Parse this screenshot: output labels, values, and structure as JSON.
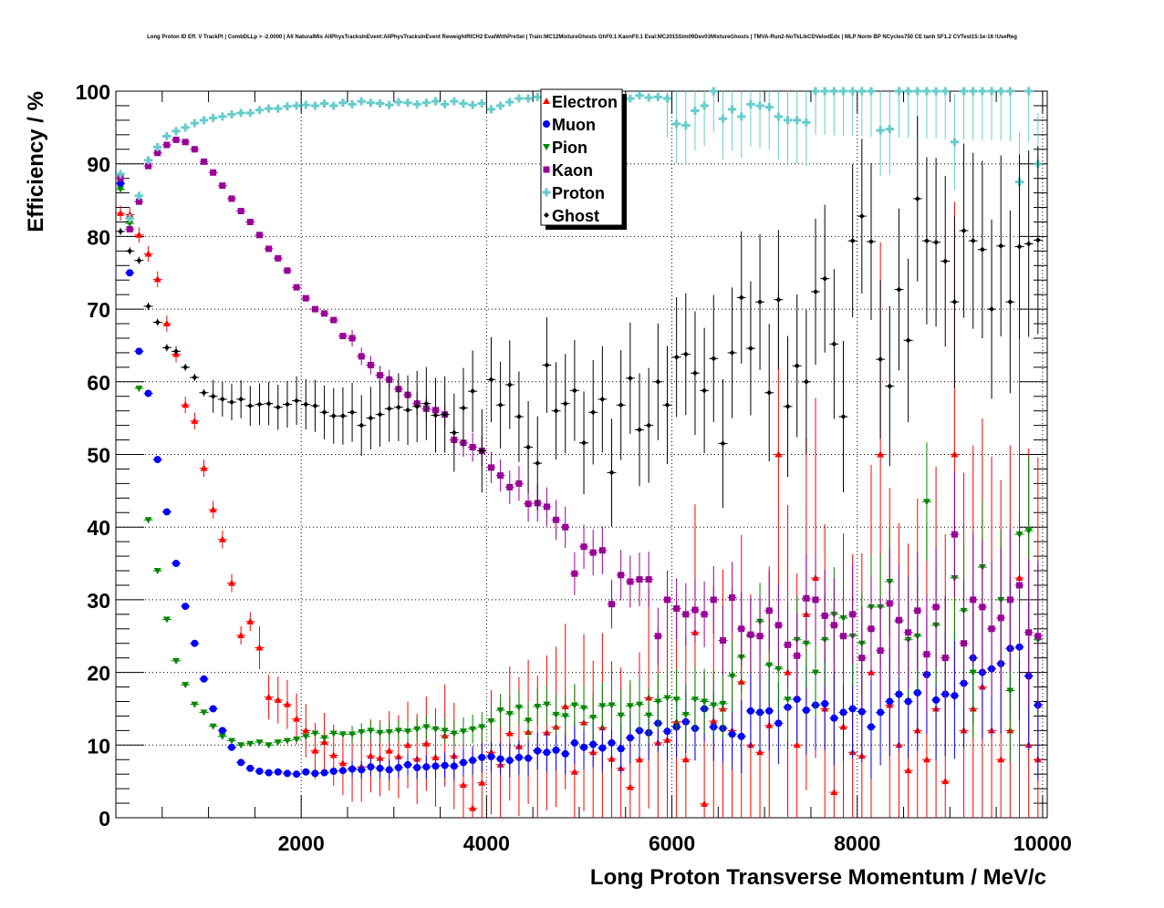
{
  "chart_data": {
    "type": "scatter",
    "title": "Long Proton ID Eff. V TrackPt | CombDLLp > -2.0000 | All NaturalMix AllPhysTracksInEvent:AllPhysTracksInEvent ReweightRICH2 EvalWithPreSel | Train:MC12MixtureGhosts GhF0.1 KaonF0.1 Eval:MC2015Sim09Dev03MixtureGhosts | TMVA-Run2-NoTkLikCDVelodEdx | MLP Norm BP NCycles750 CE tanh SF1.2 CVTest15:1e-16 !UseReg",
    "xlabel": "Long Proton Transverse Momentum / MeV/c",
    "ylabel": "Efficiency / %",
    "xlim": [
      0,
      10050
    ],
    "ylim": [
      0,
      100
    ],
    "x_ticks": [
      2000,
      4000,
      6000,
      8000,
      10000
    ],
    "x_tick_labels": [
      "2000",
      "4000",
      "6000",
      "8000",
      "10000"
    ],
    "y_ticks": [
      0,
      10,
      20,
      30,
      40,
      50,
      60,
      70,
      80,
      90,
      100
    ],
    "y_tick_labels": [
      "0",
      "10",
      "20",
      "30",
      "40",
      "50",
      "60",
      "70",
      "80",
      "90",
      "100"
    ],
    "grid": true,
    "legend_position": "top-center",
    "x_start": 50,
    "x_step": 100,
    "series": [
      {
        "name": "Electron",
        "color": "#ff0000",
        "marker": "triangle-up",
        "values": [
          83.2,
          83.0,
          80.2,
          77.6,
          74.1,
          68.0,
          63.8,
          56.8,
          54.6,
          48.1,
          42.4,
          38.3,
          32.3,
          25.1,
          27.0,
          23.4,
          16.6,
          16.2,
          15.6,
          13.6,
          12.0,
          9.2,
          10.4,
          8.6,
          7.5,
          6.8,
          7.0,
          8.5,
          8.2,
          9.2,
          8.4,
          10.0,
          8.1,
          10.2,
          8.3,
          11.3,
          8.5,
          4.5,
          1.3,
          4.8,
          9.0,
          7.3,
          11.6,
          9.8,
          11.8,
          9.3,
          11.7,
          12.5,
          15.3,
          6.3,
          13.1,
          9.0,
          12.4,
          8.1,
          6.8,
          4.2,
          8.0,
          16.5,
          10.3,
          10.7,
          13.2,
          8.0,
          25.5,
          1.9,
          13.3,
          15.0,
          12.0,
          18.7,
          10.0,
          9.0,
          12.7,
          50.0,
          20.0,
          10.0,
          28.0,
          33.0,
          15.0,
          3.5,
          12.5,
          9.0,
          8.5,
          20.0,
          50.0,
          15.5,
          10.0,
          6.5,
          12.0,
          8.0,
          15.0,
          5.0,
          50.0,
          12.0,
          15.0,
          18.0,
          12.0,
          8.0,
          12.0,
          33.0,
          10.0,
          8.0
        ]
      },
      {
        "name": "Muon",
        "color": "#0000ff",
        "marker": "circle",
        "values": [
          87.3,
          75.0,
          64.2,
          58.4,
          49.3,
          42.1,
          35.0,
          29.1,
          24.0,
          19.1,
          15.0,
          12.0,
          9.7,
          7.6,
          6.8,
          6.4,
          6.2,
          6.3,
          6.1,
          6.0,
          6.3,
          6.1,
          6.2,
          6.4,
          6.5,
          6.7,
          6.6,
          7.0,
          6.8,
          6.6,
          6.9,
          7.3,
          6.9,
          7.0,
          7.1,
          7.2,
          7.1,
          7.6,
          7.9,
          8.3,
          8.4,
          8.1,
          7.9,
          8.3,
          8.2,
          9.2,
          9.0,
          9.3,
          8.8,
          10.3,
          9.7,
          10.1,
          9.6,
          10.3,
          9.5,
          11.0,
          12.0,
          11.7,
          13.0,
          11.9,
          12.5,
          13.2,
          12.3,
          15.0,
          12.5,
          12.3,
          11.5,
          11.2,
          14.7,
          14.5,
          14.7,
          13.0,
          15.2,
          16.3,
          14.8,
          15.5,
          15.7,
          13.7,
          14.5,
          15.0,
          14.6,
          12.5,
          14.5,
          16.0,
          17.0,
          16.0,
          17.2,
          19.7,
          16.2,
          17.0,
          16.8,
          18.5,
          22.0,
          20.0,
          20.5,
          21.2,
          23.3,
          23.5,
          19.5,
          15.5
        ]
      },
      {
        "name": "Pion",
        "color": "#008800",
        "marker": "triangle-down",
        "values": [
          86.5,
          81.8,
          59.1,
          41.0,
          34.0,
          27.3,
          21.6,
          18.3,
          15.6,
          14.5,
          12.6,
          11.2,
          10.6,
          10.0,
          10.2,
          10.4,
          10.0,
          10.4,
          10.6,
          10.8,
          11.2,
          11.6,
          11.0,
          11.6,
          11.5,
          11.5,
          11.8,
          12.0,
          11.7,
          11.8,
          12.0,
          11.9,
          12.2,
          12.5,
          12.2,
          12.0,
          11.6,
          11.9,
          12.2,
          12.5,
          13.3,
          14.8,
          14.3,
          15.2,
          13.4,
          15.3,
          15.6,
          14.2,
          14.0,
          15.5,
          15.1,
          13.8,
          15.4,
          15.5,
          14.1,
          15.4,
          15.6,
          14.1,
          16.0,
          16.5,
          16.3,
          14.2,
          16.3,
          16.0,
          15.5,
          15.7,
          19.5,
          22.1,
          25.0,
          27.0,
          21.0,
          20.5,
          16.3,
          24.5,
          24.0,
          20.0,
          24.5,
          28.0,
          27.5,
          25.0,
          24.0,
          29.0,
          29.0,
          32.5,
          27.0,
          24.5,
          25.0,
          43.5,
          26.5,
          22.0,
          33.0,
          28.5,
          20.0,
          34.5,
          26.0,
          30.0,
          17.5,
          39.0,
          39.5,
          24.5
        ]
      },
      {
        "name": "Kaon",
        "color": "#990099",
        "marker": "square",
        "values": [
          88.0,
          81.0,
          84.8,
          89.7,
          91.5,
          92.6,
          93.3,
          93.0,
          92.0,
          90.3,
          88.8,
          87.0,
          85.2,
          83.5,
          82.0,
          80.2,
          78.3,
          77.0,
          75.3,
          73.0,
          71.5,
          70.0,
          69.4,
          68.5,
          66.3,
          66.0,
          63.5,
          62.3,
          60.9,
          60.3,
          59.0,
          58.2,
          57.0,
          56.3,
          56.1,
          55.5,
          52.0,
          51.6,
          51.0,
          50.5,
          48.2,
          47.1,
          45.5,
          46.0,
          43.2,
          43.3,
          42.8,
          41.0,
          40.0,
          33.6,
          37.3,
          36.5,
          36.8,
          29.4,
          33.4,
          32.5,
          32.8,
          32.8,
          25.0,
          30.0,
          28.8,
          28.0,
          28.6,
          28.0,
          30.0,
          24.4,
          30.3,
          26.0,
          25.2,
          25.0,
          28.5,
          26.5,
          23.8,
          22.3,
          30.2,
          30.0,
          27.8,
          26.5,
          25.0,
          28.0,
          22.0,
          26.0,
          23.0,
          29.5,
          27.2,
          25.5,
          28.5,
          22.5,
          29.0,
          22.0,
          39.0,
          24.0,
          30.0,
          29.0,
          26.0,
          27.5,
          30.0,
          32.0,
          25.5,
          25.0
        ]
      },
      {
        "name": "Proton",
        "color": "#66cccc",
        "marker": "cross",
        "values": [
          88.6,
          82.5,
          85.6,
          90.5,
          92.3,
          93.8,
          94.5,
          95.0,
          95.6,
          96.0,
          96.3,
          96.5,
          96.8,
          97.0,
          97.0,
          97.4,
          97.6,
          97.6,
          97.9,
          98.0,
          98.1,
          98.0,
          98.3,
          98.0,
          98.4,
          98.2,
          98.6,
          98.4,
          98.3,
          98.1,
          98.5,
          98.4,
          98.2,
          98.4,
          98.6,
          98.2,
          98.6,
          98.3,
          98.1,
          98.3,
          97.5,
          98.0,
          98.5,
          99.0,
          99.0,
          99.2,
          99.6,
          99.0,
          99.4,
          99.5,
          99.0,
          99.2,
          99.1,
          99.3,
          99.0,
          99.0,
          99.4,
          99.1,
          99.2,
          99.0,
          95.5,
          95.3,
          97.3,
          98.0,
          100.0,
          96.2,
          97.5,
          96.5,
          98.2,
          98.0,
          97.8,
          96.5,
          96.0,
          96.0,
          95.7,
          100.0,
          100.0,
          100.0,
          100.0,
          100.0,
          100.0,
          100.0,
          94.6,
          94.8,
          100.0,
          100.0,
          100.0,
          100.0,
          100.0,
          100.0,
          93.0,
          100.0,
          100.0,
          100.0,
          100.0,
          100.0,
          100.0,
          87.5,
          100.0,
          90.0
        ]
      },
      {
        "name": "Ghost",
        "color": "#000000",
        "marker": "diamond",
        "values": [
          80.7,
          78.0,
          76.7,
          70.4,
          68.2,
          64.7,
          64.2,
          62.0,
          60.6,
          58.5,
          58.0,
          57.6,
          57.2,
          57.6,
          56.7,
          56.9,
          57.0,
          56.5,
          56.9,
          57.4,
          56.9,
          56.7,
          55.8,
          55.3,
          55.3,
          55.8,
          54.0,
          55.0,
          55.5,
          56.3,
          56.5,
          56.1,
          56.6,
          57.0,
          55.4,
          55.5,
          53.0,
          56.4,
          58.7,
          50.5,
          60.3,
          56.8,
          59.6,
          55.2,
          51.0,
          48.8,
          62.3,
          56.0,
          57.0,
          58.8,
          51.6,
          55.8,
          57.6,
          47.5,
          56.8,
          60.5,
          53.4,
          54.0,
          60.0,
          56.8,
          63.4,
          63.8,
          61.2,
          58.8,
          63.2,
          51.5,
          64.0,
          71.6,
          64.6,
          71.0,
          58.5,
          71.3,
          56.6,
          62.2,
          60.0,
          72.4,
          74.2,
          65.2,
          55.2,
          79.4,
          82.8,
          79.3,
          63.1,
          59.4,
          72.7,
          65.7,
          85.2,
          79.4,
          79.2,
          76.6,
          71.0,
          80.8,
          79.4,
          78.2,
          70.0,
          78.7,
          71.0,
          78.6,
          79.0,
          79.5
        ]
      }
    ]
  }
}
